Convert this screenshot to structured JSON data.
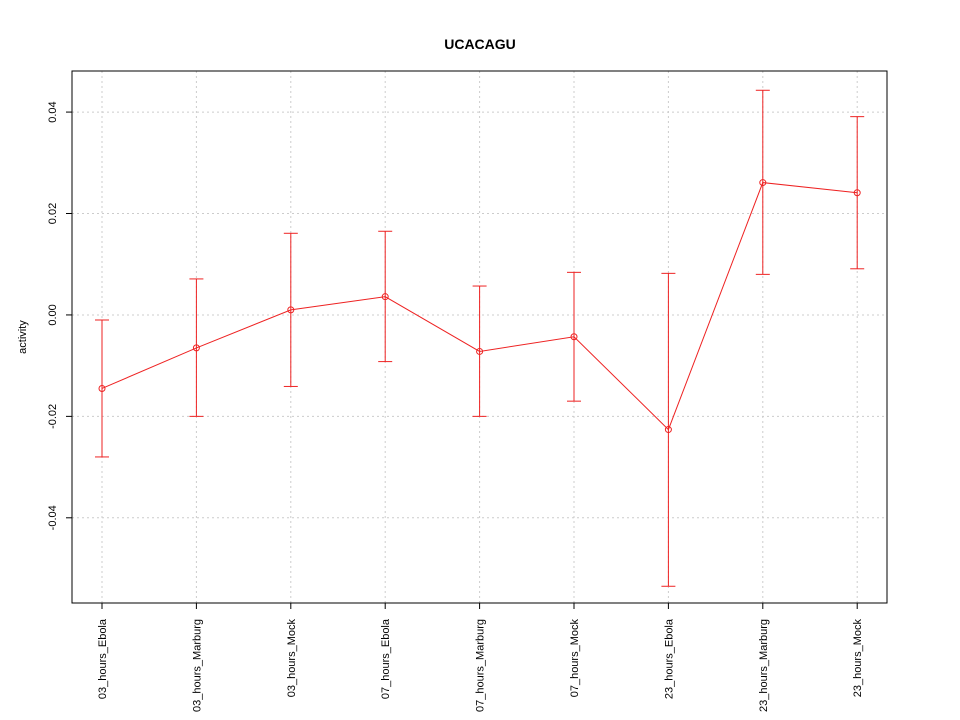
{
  "chart_data": {
    "type": "line",
    "title": "UCACAGU",
    "xlabel": "",
    "ylabel": "activity",
    "categories": [
      "03_hours_Ebola",
      "03_hours_Marburg",
      "03_hours_Mock",
      "07_hours_Ebola",
      "07_hours_Marburg",
      "07_hours_Mock",
      "23_hours_Ebola",
      "23_hours_Marburg",
      "23_hours_Mock"
    ],
    "series": [
      {
        "values": [
          -0.0145,
          -0.0065,
          0.001,
          0.0036,
          -0.0072,
          -0.0043,
          -0.0226,
          0.0261,
          0.0241
        ],
        "lower": [
          -0.028,
          -0.02,
          -0.0141,
          -0.0092,
          -0.02,
          -0.017,
          -0.0535,
          0.008,
          0.0091
        ],
        "upper": [
          -0.001,
          0.0071,
          0.0161,
          0.0165,
          0.0057,
          0.0084,
          0.0082,
          0.0443,
          0.0391
        ]
      }
    ],
    "yticks": [
      -0.04,
      -0.02,
      0.0,
      0.02,
      0.04
    ],
    "ytick_labels": [
      "-0.04",
      "-0.02",
      "0.00",
      "0.02",
      "0.04"
    ],
    "ylim": [
      -0.0568,
      0.0481
    ],
    "grid": true,
    "legend": "none",
    "colors": {
      "series": "#ee2222",
      "grid": "#cccccc",
      "axis": "#000000"
    }
  }
}
